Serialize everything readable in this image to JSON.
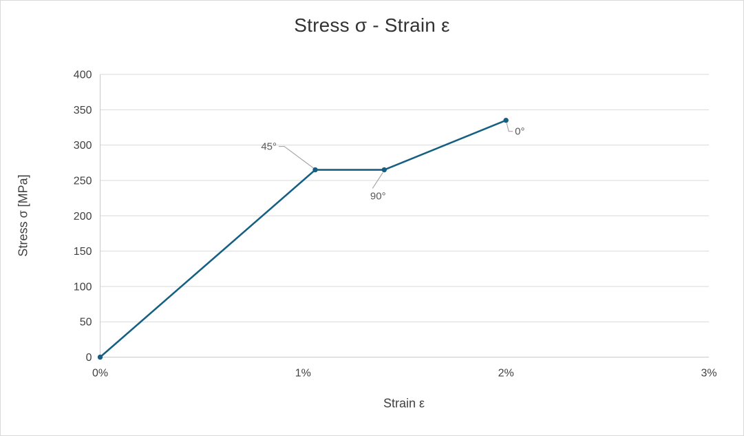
{
  "window": {
    "background": "#ffffff",
    "border_color": "#d9d9d9"
  },
  "chart_data": {
    "type": "line",
    "title": "Stress σ - Strain ε",
    "xlabel": "Strain ε",
    "ylabel": "Stress σ [MPa]",
    "xlim": [
      0,
      3
    ],
    "ylim": [
      0,
      400
    ],
    "x_unit": "%",
    "x_ticks": [
      "0%",
      "1%",
      "2%",
      "3%"
    ],
    "x_tick_values": [
      0,
      1,
      2,
      3
    ],
    "y_ticks": [
      0,
      50,
      100,
      150,
      200,
      250,
      300,
      350,
      400
    ],
    "grid": "horizontal",
    "legend": "none",
    "series": [
      {
        "name": "Stress-Strain curve",
        "x": [
          0,
          1.06,
          1.4,
          2
        ],
        "y": [
          0,
          265,
          265,
          335
        ]
      }
    ],
    "annotations": [
      {
        "label": "45°",
        "point_index": 1,
        "placement": "upper-left"
      },
      {
        "label": "90°",
        "point_index": 2,
        "placement": "below"
      },
      {
        "label": "0°",
        "point_index": 3,
        "placement": "lower-right"
      }
    ],
    "colors": {
      "line": "#156082",
      "marker": "#156082",
      "gridline": "#d9d9d9",
      "axis_line": "#c9c9c9",
      "leader": "#a6a6a6",
      "title_text": "#333333",
      "tick_text": "#404040",
      "annotation_text": "#595959"
    }
  }
}
